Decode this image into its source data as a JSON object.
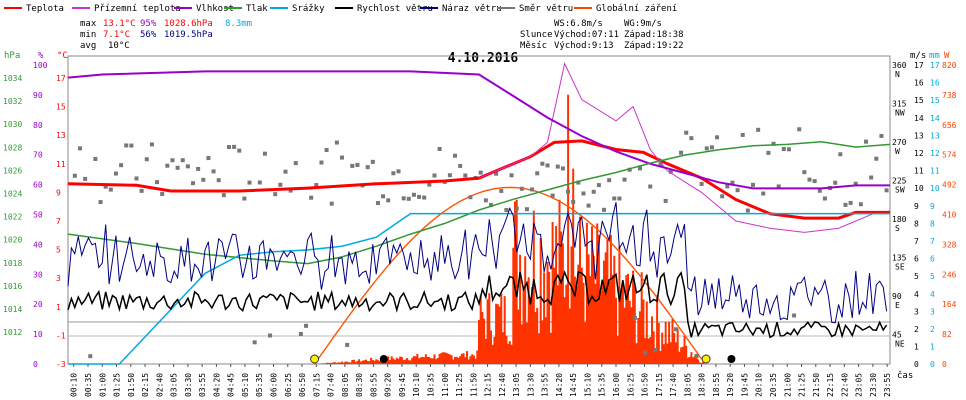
{
  "title": "4.10.2016",
  "legend": [
    {
      "label": "Teplota",
      "color": "#ff0000"
    },
    {
      "label": "Přízemní teplota",
      "color": "#cc33cc"
    },
    {
      "label": "Vlhkost",
      "color": "#9900cc"
    },
    {
      "label": "Tlak",
      "color": "#339933"
    },
    {
      "label": "Srážky",
      "color": "#00aadd"
    },
    {
      "label": "Rychlost větru",
      "color": "#000000"
    },
    {
      "label": "Náraz větru",
      "color": "#000080"
    },
    {
      "label": "Směr větru",
      "color": "#777777"
    },
    {
      "label": "Globální záření",
      "color": "#ff4400"
    }
  ],
  "stats": {
    "max_label": "max",
    "max_temp": "13.1°C",
    "max_hum": "95%",
    "max_press": "1028.6hPa",
    "max_rain": "8.3mm",
    "min_label": "min",
    "min_temp": "7.1°C",
    "min_hum": "56%",
    "min_press": "1019.5hPa",
    "avg_label": "avg",
    "avg_temp": "10°C"
  },
  "info": {
    "ws": "WS:6.8m/s",
    "wg": "WG:9m/s",
    "sun_label": "Slunce",
    "sun_rise": "Východ:07:11",
    "sun_set": "Západ:18:38",
    "moon_label": "Měsíc",
    "moon_rise": "Východ:9:13",
    "moon_set": "Západ:19:22"
  },
  "axes": {
    "hpa_unit": "hPa",
    "pct_unit": "%",
    "c_unit": "°C",
    "hpa_ticks": [
      "1034",
      "1032",
      "1030",
      "1028",
      "1026",
      "1024",
      "1022",
      "1020",
      "1018",
      "1016",
      "1014",
      "1012"
    ],
    "pct_ticks": [
      "100",
      "90",
      "80",
      "70",
      "60",
      "50",
      "40",
      "30",
      "20",
      "10",
      "0"
    ],
    "c_ticks": [
      "17",
      "15",
      "13",
      "11",
      "9",
      "7",
      "5",
      "3",
      "1",
      "-1",
      "-3"
    ],
    "dir_unit": "m/s",
    "mm_unit": "mm",
    "w_unit": "W",
    "deg_ticks": [
      "360",
      "315",
      "270",
      "225",
      "180",
      "135",
      "90",
      "45"
    ],
    "dir_ticks": [
      "N",
      "NW",
      "W",
      "SW",
      "S",
      "SE",
      "E",
      "NE"
    ],
    "ms_ticks": [
      "17",
      "16",
      "15",
      "14",
      "13",
      "12",
      "11",
      "10",
      "9",
      "8",
      "7",
      "6",
      "5",
      "4",
      "3",
      "2",
      "1",
      "0"
    ],
    "w_ticks": [
      "820",
      "738",
      "656",
      "574",
      "492",
      "410",
      "328",
      "246",
      "164",
      "82",
      "0"
    ],
    "x_unit": "čas",
    "x_ticks": [
      "00:10",
      "00:35",
      "01:00",
      "01:25",
      "01:50",
      "02:15",
      "02:40",
      "03:05",
      "03:30",
      "03:55",
      "04:20",
      "04:45",
      "05:10",
      "05:35",
      "06:00",
      "06:25",
      "06:50",
      "07:15",
      "07:40",
      "08:05",
      "08:30",
      "08:55",
      "09:20",
      "09:45",
      "10:10",
      "10:35",
      "11:00",
      "11:25",
      "11:50",
      "12:15",
      "12:40",
      "13:05",
      "13:30",
      "13:55",
      "14:20",
      "14:45",
      "15:10",
      "15:35",
      "16:00",
      "16:25",
      "16:50",
      "17:15",
      "17:40",
      "18:05",
      "18:30",
      "18:55",
      "19:20",
      "19:45",
      "20:10",
      "20:35",
      "21:00",
      "21:25",
      "21:50",
      "22:15",
      "22:40",
      "23:05",
      "23:30",
      "23:55"
    ]
  },
  "chart_data": {
    "type": "line",
    "title": "4.10.2016",
    "x_range_hours": [
      0,
      24
    ],
    "series": [
      {
        "name": "Teplota",
        "unit": "°C",
        "points": [
          [
            0,
            9.6
          ],
          [
            2,
            9.5
          ],
          [
            3,
            9.1
          ],
          [
            5,
            9.1
          ],
          [
            7,
            9.3
          ],
          [
            9,
            9.6
          ],
          [
            11,
            9.8
          ],
          [
            12,
            10
          ],
          [
            12.5,
            10.5
          ],
          [
            13.5,
            11.5
          ],
          [
            14.2,
            12.5
          ],
          [
            15,
            12.6
          ],
          [
            16,
            12
          ],
          [
            16.8,
            11.8
          ],
          [
            17.5,
            11
          ],
          [
            18.5,
            10
          ],
          [
            19.5,
            8.5
          ],
          [
            20.5,
            7.5
          ],
          [
            21.5,
            7.2
          ],
          [
            22.5,
            7.2
          ],
          [
            23,
            7.6
          ],
          [
            24,
            7.6
          ]
        ]
      },
      {
        "name": "Přízemní teplota",
        "unit": "°C",
        "points": [
          [
            12,
            10
          ],
          [
            13,
            11
          ],
          [
            13.5,
            11.5
          ],
          [
            14,
            12.5
          ],
          [
            14.5,
            18
          ],
          [
            15,
            15.5
          ],
          [
            16,
            14
          ],
          [
            16.5,
            15
          ],
          [
            17,
            12
          ],
          [
            17.5,
            10.5
          ],
          [
            18.5,
            9
          ],
          [
            19.5,
            7
          ],
          [
            20.5,
            6.5
          ],
          [
            21.5,
            6.2
          ],
          [
            22.5,
            6.5
          ],
          [
            23.5,
            7.5
          ]
        ]
      },
      {
        "name": "Vlhkost",
        "unit": "%",
        "points": [
          [
            0,
            93
          ],
          [
            1,
            94
          ],
          [
            4,
            95
          ],
          [
            8,
            95
          ],
          [
            10,
            95
          ],
          [
            12,
            94
          ],
          [
            13,
            87
          ],
          [
            14,
            80
          ],
          [
            15,
            74
          ],
          [
            16,
            69
          ],
          [
            17,
            65
          ],
          [
            18,
            62
          ],
          [
            19,
            59
          ],
          [
            20,
            57
          ],
          [
            21,
            57
          ],
          [
            22,
            57
          ],
          [
            23,
            58
          ],
          [
            24,
            58
          ]
        ]
      },
      {
        "name": "Tlak",
        "unit": "hPa",
        "points": [
          [
            0,
            1021.7
          ],
          [
            2,
            1021.0
          ],
          [
            4,
            1020.2
          ],
          [
            6,
            1019.7
          ],
          [
            7,
            1019.5
          ],
          [
            8,
            1020.0
          ],
          [
            9,
            1020.8
          ],
          [
            10,
            1021.7
          ],
          [
            11,
            1022.5
          ],
          [
            12,
            1023.5
          ],
          [
            13,
            1024.3
          ],
          [
            14,
            1025.0
          ],
          [
            15,
            1025.7
          ],
          [
            16,
            1026.3
          ],
          [
            17,
            1027.0
          ],
          [
            18,
            1027.6
          ],
          [
            19,
            1028.0
          ],
          [
            20,
            1028.3
          ],
          [
            21,
            1028.4
          ],
          [
            22,
            1028.6
          ],
          [
            23,
            1028.2
          ],
          [
            24,
            1028.4
          ]
        ]
      },
      {
        "name": "Srážky",
        "unit": "mm",
        "points": [
          [
            0,
            0
          ],
          [
            1.5,
            0
          ],
          [
            2,
            1
          ],
          [
            3,
            3
          ],
          [
            4,
            5
          ],
          [
            5,
            6
          ],
          [
            6,
            6.2
          ],
          [
            7,
            6.3
          ],
          [
            8,
            6.5
          ],
          [
            9,
            7
          ],
          [
            10,
            8.3
          ],
          [
            24,
            8.3
          ]
        ]
      },
      {
        "name": "Globální záření",
        "unit": "W",
        "points": [
          [
            7.2,
            0
          ],
          [
            9,
            300
          ],
          [
            10.5,
            430
          ],
          [
            12,
            470
          ],
          [
            13.5,
            430
          ],
          [
            15,
            300
          ],
          [
            16.5,
            160
          ],
          [
            18.6,
            0
          ]
        ]
      }
    ]
  }
}
